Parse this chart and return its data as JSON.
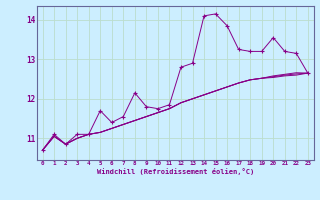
{
  "xlabel": "Windchill (Refroidissement éolien,°C)",
  "background_color": "#cceeff",
  "grid_color": "#aaddcc",
  "line_color": "#880088",
  "spine_color": "#666699",
  "tick_color": "#880088",
  "xlim": [
    -0.5,
    23.5
  ],
  "ylim": [
    10.45,
    14.35
  ],
  "xticks": [
    0,
    1,
    2,
    3,
    4,
    5,
    6,
    7,
    8,
    9,
    10,
    11,
    12,
    13,
    14,
    15,
    16,
    17,
    18,
    19,
    20,
    21,
    22,
    23
  ],
  "yticks": [
    11,
    12,
    13,
    14
  ],
  "series0": [
    10.7,
    11.1,
    10.85,
    11.1,
    11.1,
    11.7,
    11.4,
    11.55,
    12.15,
    11.8,
    11.75,
    11.85,
    12.8,
    12.9,
    14.1,
    14.15,
    13.85,
    13.25,
    13.2,
    13.2,
    13.55,
    13.2,
    13.15,
    12.65
  ],
  "series1": [
    10.7,
    11.05,
    10.85,
    11.0,
    11.1,
    11.15,
    11.25,
    11.35,
    11.45,
    11.55,
    11.65,
    11.75,
    11.9,
    12.0,
    12.1,
    12.2,
    12.3,
    12.4,
    12.48,
    12.52,
    12.58,
    12.62,
    12.66,
    12.65
  ],
  "series2": [
    10.7,
    11.05,
    10.85,
    11.0,
    11.1,
    11.15,
    11.25,
    11.35,
    11.45,
    11.55,
    11.65,
    11.75,
    11.9,
    12.0,
    12.1,
    12.2,
    12.3,
    12.4,
    12.48,
    12.52,
    12.56,
    12.6,
    12.63,
    12.65
  ],
  "series3": [
    10.7,
    11.05,
    10.85,
    11.0,
    11.1,
    11.15,
    11.25,
    11.35,
    11.45,
    11.55,
    11.65,
    11.75,
    11.9,
    12.0,
    12.1,
    12.2,
    12.3,
    12.4,
    12.48,
    12.52,
    12.54,
    12.58,
    12.6,
    12.65
  ]
}
